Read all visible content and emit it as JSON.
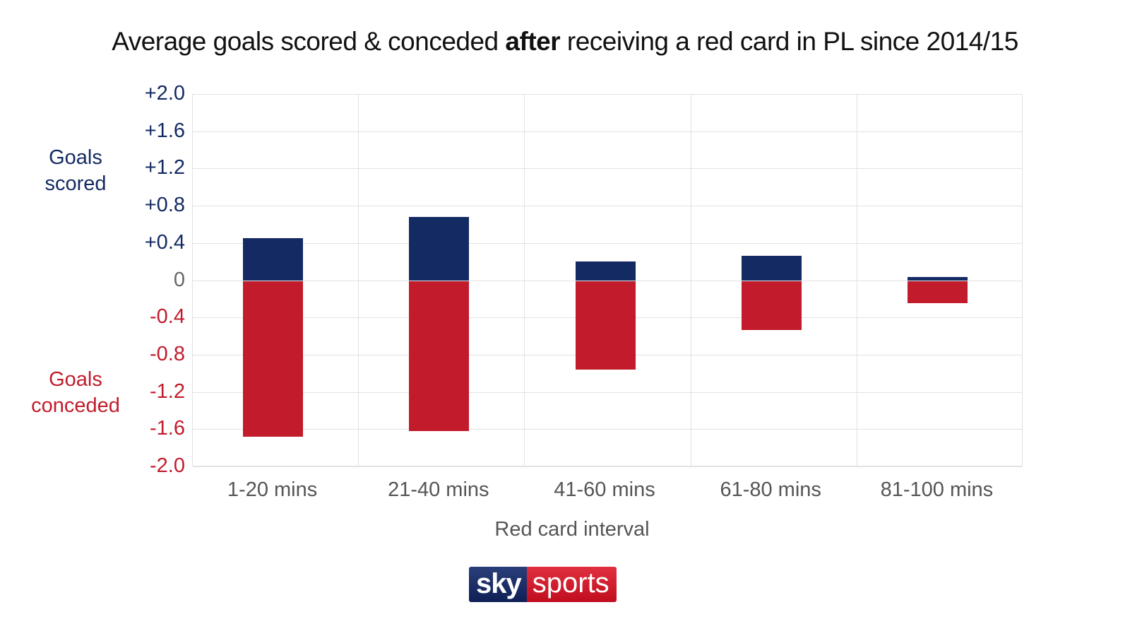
{
  "title": {
    "prefix": "Average goals scored & conceded ",
    "bold": "after",
    "suffix": " receiving a red card in PL since 2014/15"
  },
  "side_labels": {
    "scored_line1": "Goals",
    "scored_line2": "scored",
    "conceded_line1": "Goals",
    "conceded_line2": "conceded"
  },
  "colors": {
    "scored": "#132a63",
    "conceded": "#c21b2b",
    "grid": "#e2e2e2",
    "axis_text": "#555555"
  },
  "logo": {
    "sky": "sky",
    "sports": "sports"
  },
  "chart_data": {
    "type": "bar",
    "stacked": true,
    "title": "Average goals scored & conceded after receiving a red card in PL since 2014/15",
    "xlabel": "Red card interval",
    "ylabel_positive": "Goals scored",
    "ylabel_negative": "Goals conceded",
    "categories": [
      "1-20 mins",
      "21-40 mins",
      "41-60 mins",
      "61-80 mins",
      "81-100 mins"
    ],
    "series": [
      {
        "name": "Goals scored",
        "color": "#132a63",
        "values": [
          0.46,
          0.69,
          0.21,
          0.27,
          0.04
        ]
      },
      {
        "name": "Goals conceded",
        "color": "#c21b2b",
        "values": [
          -1.67,
          -1.61,
          -0.95,
          -0.53,
          -0.24
        ]
      }
    ],
    "ylim": [
      -2.0,
      2.0
    ],
    "yticks": [
      "+2.0",
      "+1.6",
      "+1.2",
      "+0.8",
      "+0.4",
      "0",
      "-0.4",
      "-0.8",
      "-1.2",
      "-1.6",
      "-2.0"
    ],
    "ytick_values": [
      2.0,
      1.6,
      1.2,
      0.8,
      0.4,
      0,
      -0.4,
      -0.8,
      -1.2,
      -1.6,
      -2.0
    ],
    "grid": true,
    "legend": "none"
  }
}
